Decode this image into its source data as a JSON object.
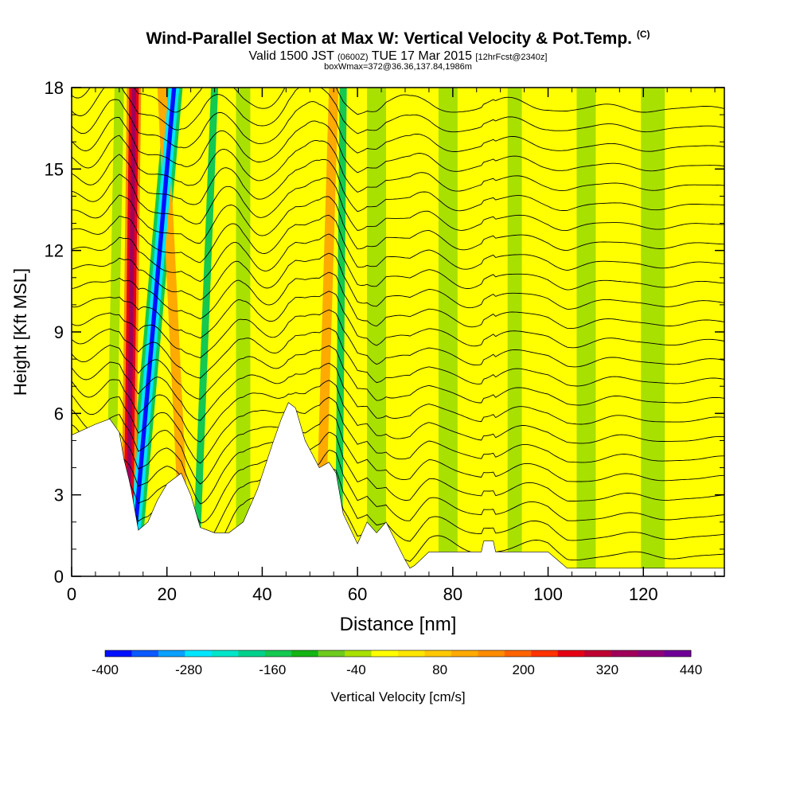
{
  "header": {
    "title": "Wind-Parallel Section at Max W: Vertical Velocity & Pot.Temp.",
    "copyright_mark": "(C)",
    "valid_prefix": "Valid 1500 JST",
    "valid_utc": "(0600Z)",
    "valid_date": "TUE 17 Mar 2015",
    "forecast_info": "[12hrFcst@2340z]",
    "box_info": "boxWmax=372@36.36,137.84,1986m"
  },
  "colors": {
    "terrain": "#ffffff",
    "contour_line": "#000000",
    "background_field": "#ffff00",
    "weak_down": "#a8e000"
  },
  "chart_data": {
    "type": "heatmap",
    "xlabel": "Distance [nm]",
    "ylabel": "Height [Kft MSL]",
    "xlim": [
      0,
      137
    ],
    "ylim": [
      0,
      18
    ],
    "x_ticks": [
      0,
      20,
      40,
      60,
      80,
      100,
      120
    ],
    "y_ticks": [
      0,
      3,
      6,
      9,
      12,
      15,
      18
    ],
    "grid": false,
    "colorbar": {
      "label": "Vertical Velocity [cm/s]",
      "tick_labels": [
        "-400",
        "-280",
        "-160",
        "-40",
        "80",
        "200",
        "320",
        "440"
      ],
      "min": -400,
      "max": 440,
      "step": 40,
      "colors": [
        "#0010ff",
        "#0a5aff",
        "#0aa0ff",
        "#00e6ff",
        "#00e6c8",
        "#00d28c",
        "#14c850",
        "#14b414",
        "#6ecb1e",
        "#a8e000",
        "#ffff00",
        "#ffe600",
        "#ffc800",
        "#ffaa00",
        "#ff8c00",
        "#ff6400",
        "#ff3200",
        "#e60014",
        "#be0032",
        "#a0005a",
        "#8c0078",
        "#6e0096"
      ]
    },
    "terrain_profile": {
      "x_nm": [
        0,
        5,
        8,
        10,
        11,
        12,
        12.5,
        14,
        16,
        18,
        20,
        23,
        25,
        27,
        30,
        33,
        36,
        39,
        42,
        44,
        45.5,
        47,
        49,
        52,
        54,
        55.5,
        57,
        60,
        62,
        64,
        66,
        68,
        70,
        71,
        72,
        75,
        80,
        86,
        86.5,
        88.5,
        89,
        100,
        102,
        104,
        137
      ],
      "height_kft": [
        5.2,
        5.6,
        5.8,
        5.3,
        4.3,
        3.6,
        3.2,
        1.7,
        2.0,
        2.8,
        3.4,
        3.8,
        3.0,
        1.8,
        1.6,
        1.6,
        2.0,
        3.2,
        4.8,
        5.8,
        6.4,
        6.2,
        5.0,
        4.0,
        4.2,
        3.8,
        2.3,
        1.2,
        2.0,
        1.6,
        2.0,
        1.3,
        0.6,
        0.3,
        0.4,
        0.9,
        0.9,
        0.9,
        1.3,
        1.3,
        0.9,
        0.9,
        0.6,
        0.3,
        0.3
      ]
    },
    "velocity_bands": [
      {
        "x_base_nm": 12.5,
        "tilt_nm": 9,
        "width_nm": 0.9,
        "w_cm_s": -380
      },
      {
        "x_base_nm": 12.5,
        "tilt_nm": 9,
        "width_nm": 2.2,
        "w_cm_s": -260
      },
      {
        "x_base_nm": 12.5,
        "tilt_nm": 9,
        "width_nm": 3.6,
        "w_cm_s": -140
      },
      {
        "x_base_nm": 11.8,
        "tilt_nm": 1.3,
        "width_nm": 0.9,
        "w_cm_s": 380
      },
      {
        "x_base_nm": 11.8,
        "tilt_nm": 1.3,
        "width_nm": 2.0,
        "w_cm_s": 290
      },
      {
        "x_base_nm": 11.8,
        "tilt_nm": 1.3,
        "width_nm": 3.0,
        "w_cm_s": 170
      },
      {
        "x_base_nm": 24,
        "tilt_nm": -5,
        "width_nm": 2.0,
        "w_cm_s": 150
      },
      {
        "x_base_nm": 26,
        "tilt_nm": 4,
        "width_nm": 1.5,
        "w_cm_s": -140
      },
      {
        "x_base_nm": 52,
        "tilt_nm": 3,
        "width_nm": 2.0,
        "w_cm_s": 140
      },
      {
        "x_base_nm": 56,
        "tilt_nm": 1,
        "width_nm": 1.5,
        "w_cm_s": -140
      },
      {
        "x_base_nm": 8,
        "tilt_nm": 2,
        "width_nm": 2.0,
        "w_cm_s": -40
      },
      {
        "x_base_nm": 36,
        "tilt_nm": 0,
        "width_nm": 3.0,
        "w_cm_s": -40
      },
      {
        "x_base_nm": 64,
        "tilt_nm": 0,
        "width_nm": 4.0,
        "w_cm_s": -40
      },
      {
        "x_base_nm": 79,
        "tilt_nm": 0,
        "width_nm": 4.0,
        "w_cm_s": -40
      },
      {
        "x_base_nm": 93,
        "tilt_nm": 0,
        "width_nm": 3.0,
        "w_cm_s": -40
      },
      {
        "x_base_nm": 108,
        "tilt_nm": 0,
        "width_nm": 4.0,
        "w_cm_s": -40
      },
      {
        "x_base_nm": 122,
        "tilt_nm": 0,
        "width_nm": 5.0,
        "w_cm_s": -40
      }
    ],
    "theta_contours": {
      "start_height_kft": 0.6,
      "spacing_kft": 0.72,
      "count": 24,
      "wave_amplitude_kft": 1.0
    }
  }
}
